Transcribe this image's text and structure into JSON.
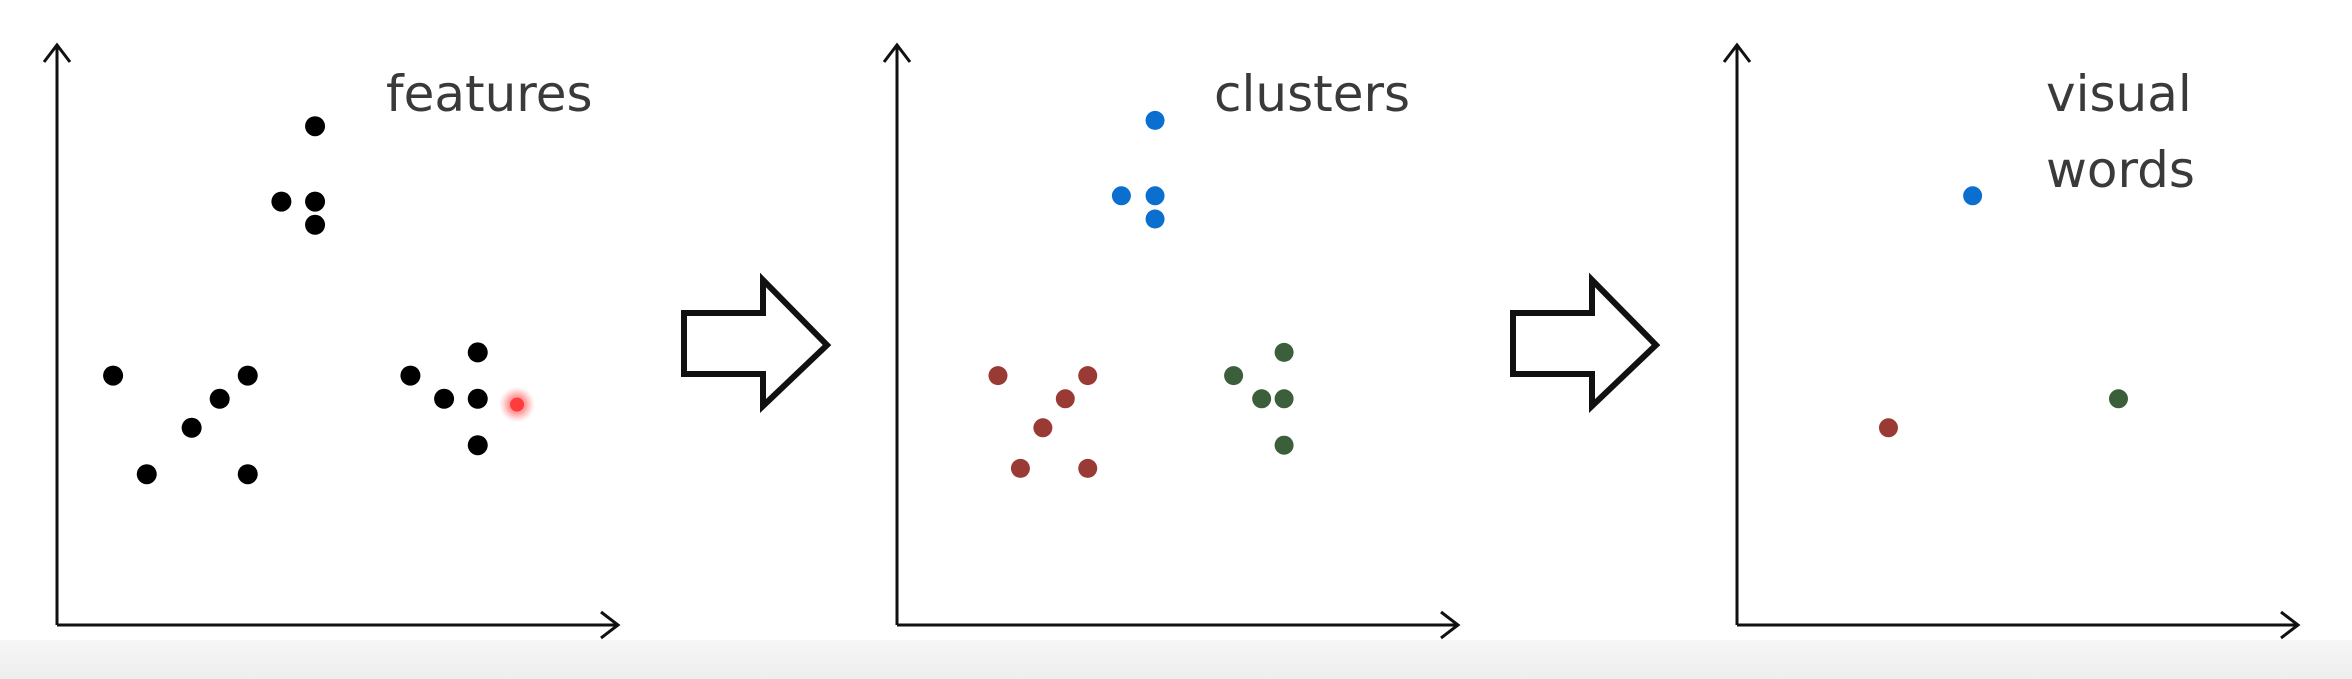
{
  "colors": {
    "axis": "#111111",
    "feature_point": "#000000",
    "highlight": "#ff3b3b",
    "cluster_blue": "#0b6fcf",
    "cluster_red": "#9a3a34",
    "cluster_green": "#3b5e3b"
  },
  "panels": [
    {
      "id": "features",
      "label_lines": [
        "features"
      ],
      "points": [
        {
          "x": 0.46,
          "y": 0.86,
          "c": "feature_point"
        },
        {
          "x": 0.4,
          "y": 0.73,
          "c": "feature_point"
        },
        {
          "x": 0.46,
          "y": 0.73,
          "c": "feature_point"
        },
        {
          "x": 0.46,
          "y": 0.69,
          "c": "feature_point"
        },
        {
          "x": 0.1,
          "y": 0.43,
          "c": "feature_point"
        },
        {
          "x": 0.34,
          "y": 0.43,
          "c": "feature_point"
        },
        {
          "x": 0.29,
          "y": 0.39,
          "c": "feature_point"
        },
        {
          "x": 0.24,
          "y": 0.34,
          "c": "feature_point"
        },
        {
          "x": 0.16,
          "y": 0.26,
          "c": "feature_point"
        },
        {
          "x": 0.34,
          "y": 0.26,
          "c": "feature_point"
        },
        {
          "x": 0.63,
          "y": 0.43,
          "c": "feature_point"
        },
        {
          "x": 0.75,
          "y": 0.47,
          "c": "feature_point"
        },
        {
          "x": 0.69,
          "y": 0.39,
          "c": "feature_point"
        },
        {
          "x": 0.75,
          "y": 0.39,
          "c": "feature_point"
        },
        {
          "x": 0.75,
          "y": 0.31,
          "c": "feature_point"
        },
        {
          "x": 0.82,
          "y": 0.38,
          "c": "highlight"
        }
      ]
    },
    {
      "id": "clusters",
      "label_lines": [
        "clusters"
      ],
      "points": [
        {
          "x": 0.46,
          "y": 0.87,
          "c": "cluster_blue"
        },
        {
          "x": 0.4,
          "y": 0.74,
          "c": "cluster_blue"
        },
        {
          "x": 0.46,
          "y": 0.74,
          "c": "cluster_blue"
        },
        {
          "x": 0.46,
          "y": 0.7,
          "c": "cluster_blue"
        },
        {
          "x": 0.18,
          "y": 0.43,
          "c": "cluster_red"
        },
        {
          "x": 0.34,
          "y": 0.43,
          "c": "cluster_red"
        },
        {
          "x": 0.3,
          "y": 0.39,
          "c": "cluster_red"
        },
        {
          "x": 0.26,
          "y": 0.34,
          "c": "cluster_red"
        },
        {
          "x": 0.22,
          "y": 0.27,
          "c": "cluster_red"
        },
        {
          "x": 0.34,
          "y": 0.27,
          "c": "cluster_red"
        },
        {
          "x": 0.6,
          "y": 0.43,
          "c": "cluster_green"
        },
        {
          "x": 0.69,
          "y": 0.47,
          "c": "cluster_green"
        },
        {
          "x": 0.65,
          "y": 0.39,
          "c": "cluster_green"
        },
        {
          "x": 0.69,
          "y": 0.39,
          "c": "cluster_green"
        },
        {
          "x": 0.69,
          "y": 0.31,
          "c": "cluster_green"
        }
      ]
    },
    {
      "id": "visual-words",
      "label_lines": [
        "visual",
        "words"
      ],
      "points": [
        {
          "x": 0.42,
          "y": 0.74,
          "c": "cluster_blue"
        },
        {
          "x": 0.27,
          "y": 0.34,
          "c": "cluster_red"
        },
        {
          "x": 0.68,
          "y": 0.39,
          "c": "cluster_green"
        }
      ]
    }
  ]
}
